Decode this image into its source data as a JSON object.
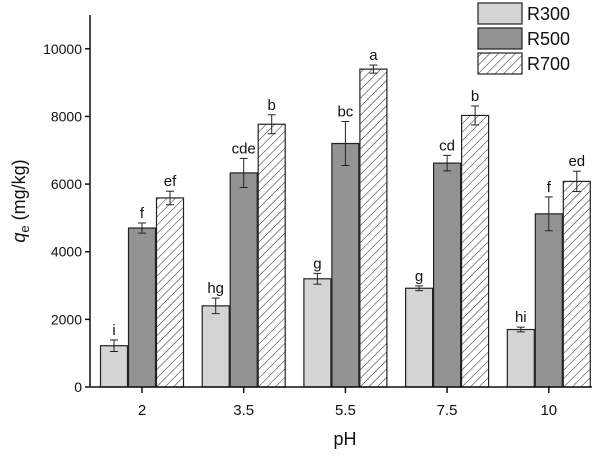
{
  "chart_data": {
    "type": "bar",
    "title": "",
    "xlabel": "pH",
    "ylabel": {
      "symbol": "q",
      "subscript": "e",
      "unit": " (mg/kg)"
    },
    "ylim": [
      0,
      11000
    ],
    "yticks": [
      0,
      2000,
      4000,
      6000,
      8000,
      10000
    ],
    "categories": [
      "2",
      "3.5",
      "5.5",
      "7.5",
      "10"
    ],
    "grid": false,
    "legend_position": "top-right",
    "series": [
      {
        "name": "R300",
        "fill": "#d4d4d4",
        "pattern": "solid",
        "values": [
          1220,
          2400,
          3200,
          2920,
          1700
        ],
        "errors": [
          170,
          230,
          160,
          70,
          70
        ],
        "labels": [
          "i",
          "hg",
          "g",
          "g",
          "hi"
        ]
      },
      {
        "name": "R500",
        "fill": "#939393",
        "pattern": "solid",
        "values": [
          4700,
          6330,
          7200,
          6620,
          5120
        ],
        "errors": [
          150,
          430,
          650,
          230,
          500
        ],
        "labels": [
          "f",
          "cde",
          "bc",
          "cd",
          "f"
        ]
      },
      {
        "name": "R700",
        "fill": "#ffffff",
        "pattern": "hatch",
        "values": [
          5590,
          7770,
          9400,
          8030,
          6080
        ],
        "errors": [
          200,
          280,
          120,
          280,
          300
        ],
        "labels": [
          "ef",
          "b",
          "a",
          "b",
          "ed"
        ]
      }
    ]
  }
}
